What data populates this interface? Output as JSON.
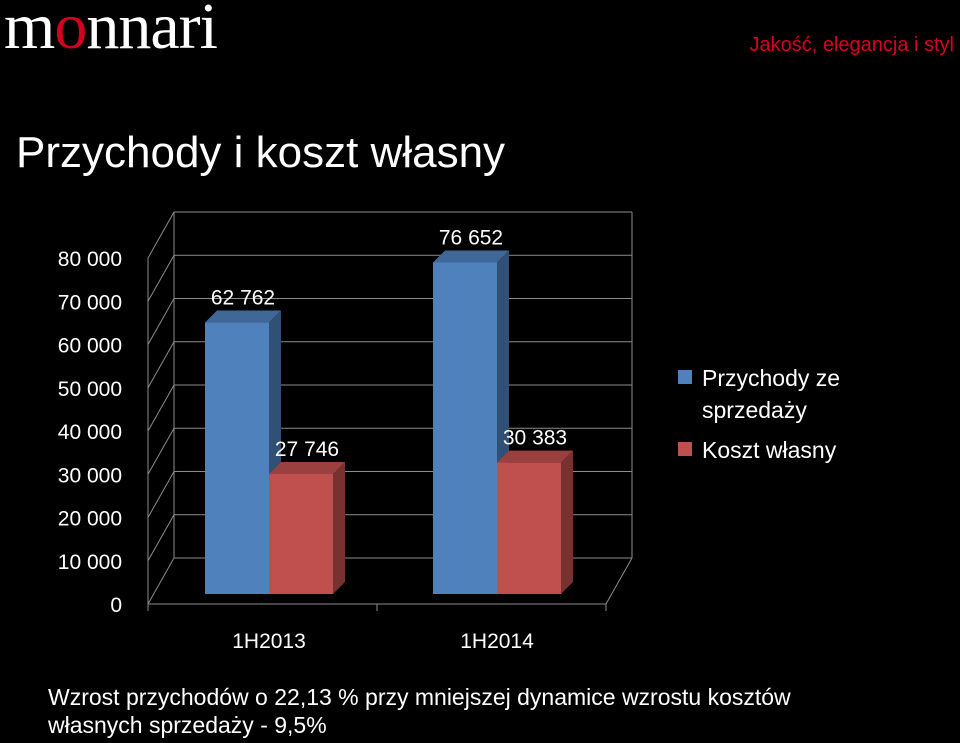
{
  "header": {
    "logo_text_before": "m",
    "logo_text_accent": "o",
    "logo_text_after": "nnari",
    "tagline": "Jakość, elegancja i styl"
  },
  "slide": {
    "title": "Przychody i koszt własny",
    "caption_line1": "Wzrost przychodów o 22,13 % przy mniejszej dynamice wzrostu kosztów",
    "caption_line2": "własnych sprzedaży - 9,5%"
  },
  "colors": {
    "accent": "#d9001b",
    "series_revenue": "#4f81bd",
    "series_cost": "#c0504d"
  },
  "chart_data": {
    "type": "bar",
    "categories": [
      "1H2013",
      "1H2014"
    ],
    "series": [
      {
        "name": "Przychody ze sprzedaży",
        "values": [
          62762,
          76652
        ],
        "labels": [
          "62 762",
          "76 652"
        ]
      },
      {
        "name": "Koszt własny",
        "values": [
          27746,
          30383
        ],
        "labels": [
          "27 746",
          "30 383"
        ]
      }
    ],
    "ylim": [
      0,
      80000
    ],
    "yticks": [
      0,
      10000,
      20000,
      30000,
      40000,
      50000,
      60000,
      70000,
      80000
    ],
    "ytick_labels": [
      "0",
      "10 000",
      "20 000",
      "30 000",
      "40 000",
      "50 000",
      "60 000",
      "70 000",
      "80 000"
    ],
    "legend_position": "right",
    "grid": true,
    "style": "3d-clustered-column"
  }
}
